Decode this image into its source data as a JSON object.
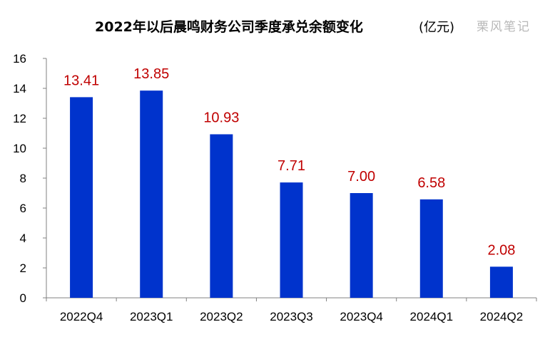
{
  "chart_data": {
    "type": "bar",
    "title": "2022年以后晨鸣财务公司季度承兑余额变化",
    "unit": "(亿元)",
    "watermark": "栗风笔记",
    "categories": [
      "2022Q4",
      "2023Q1",
      "2023Q2",
      "2023Q3",
      "2023Q4",
      "2024Q1",
      "2024Q2"
    ],
    "values": [
      13.41,
      13.85,
      10.93,
      7.71,
      7.0,
      6.58,
      2.08
    ],
    "data_labels": [
      "13.41",
      "13.85",
      "10.93",
      "7.71",
      "7.00",
      "6.58",
      "2.08"
    ],
    "xlabel": "",
    "ylabel": "",
    "ylim": [
      0,
      16
    ],
    "yticks": [
      "0",
      "2",
      "4",
      "6",
      "8",
      "10",
      "12",
      "14",
      "16"
    ],
    "grid": false,
    "legend": "none",
    "colors": {
      "bar": "#0033cc",
      "label": "#c00000",
      "axis": "#808080"
    }
  }
}
